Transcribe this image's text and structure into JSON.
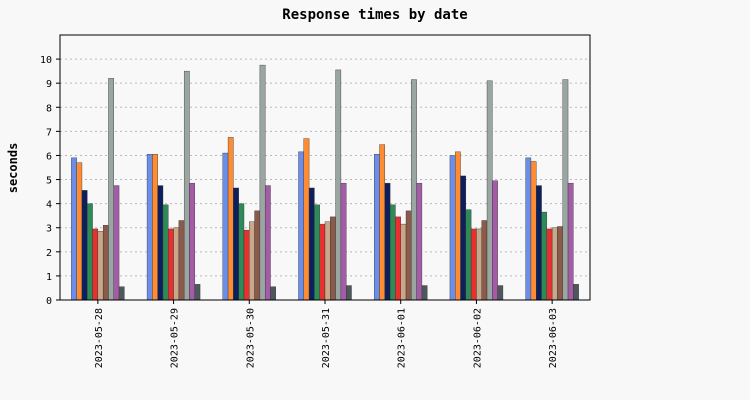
{
  "chart_data": {
    "type": "bar",
    "title": "Response times by date",
    "xlabel": "",
    "ylabel": "seconds",
    "ylim": [
      0,
      11
    ],
    "yticks": [
      0,
      1,
      2,
      3,
      4,
      5,
      6,
      7,
      8,
      9,
      10
    ],
    "grid": true,
    "legend": "none",
    "categories": [
      "2023-05-28",
      "2023-05-29",
      "2023-05-30",
      "2023-05-31",
      "2023-06-01",
      "2023-06-02",
      "2023-06-03"
    ],
    "series": [
      {
        "color": "#6b8fe8",
        "values": [
          5.9,
          6.05,
          6.1,
          6.15,
          6.05,
          6.0,
          5.9
        ]
      },
      {
        "color": "#ff8c33",
        "values": [
          5.7,
          6.05,
          6.75,
          6.7,
          6.45,
          6.15,
          5.75
        ]
      },
      {
        "color": "#0d1f5c",
        "values": [
          4.55,
          4.75,
          4.65,
          4.65,
          4.85,
          5.15,
          4.75
        ]
      },
      {
        "color": "#2e8b57",
        "values": [
          4.0,
          3.95,
          4.0,
          3.95,
          3.95,
          3.75,
          3.65
        ]
      },
      {
        "color": "#e83030",
        "values": [
          2.95,
          2.95,
          2.9,
          3.15,
          3.45,
          2.95,
          2.95
        ]
      },
      {
        "color": "#c8a888",
        "values": [
          2.85,
          3.0,
          3.25,
          3.25,
          3.15,
          2.95,
          3.0
        ]
      },
      {
        "color": "#8b5a4a",
        "values": [
          3.1,
          3.3,
          3.7,
          3.45,
          3.7,
          3.3,
          3.05
        ]
      },
      {
        "color": "#9aa6a2",
        "values": [
          9.2,
          9.5,
          9.75,
          9.55,
          9.15,
          9.1,
          9.15
        ]
      },
      {
        "color": "#a45ca8",
        "values": [
          4.75,
          4.85,
          4.75,
          4.85,
          4.85,
          4.95,
          4.85
        ]
      },
      {
        "color": "#4e585c",
        "values": [
          0.55,
          0.65,
          0.55,
          0.6,
          0.6,
          0.6,
          0.65
        ]
      }
    ]
  }
}
